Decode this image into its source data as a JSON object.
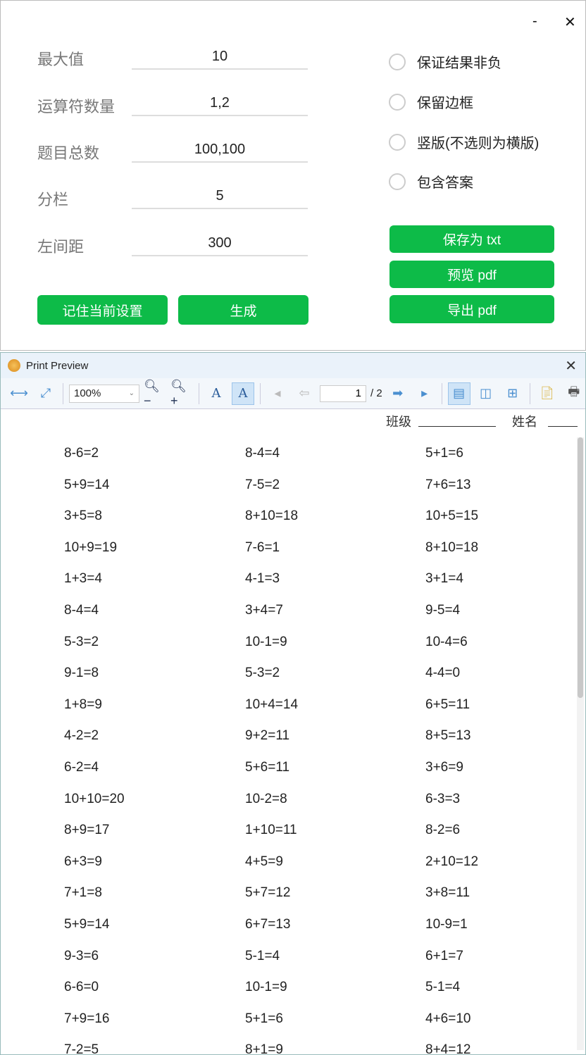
{
  "window": {
    "minimize": "-",
    "close": "✕"
  },
  "fields": [
    {
      "label": "最大值",
      "value": "10"
    },
    {
      "label": "运算符数量",
      "value": "1,2"
    },
    {
      "label": "题目总数",
      "value": "100,100"
    },
    {
      "label": "分栏",
      "value": "5"
    },
    {
      "label": "左间距",
      "value": "300"
    }
  ],
  "options": [
    {
      "label": "保证结果非负",
      "checked": false
    },
    {
      "label": "保留边框",
      "checked": false
    },
    {
      "label": "竖版(不选则为横版)",
      "checked": false
    },
    {
      "label": "包含答案",
      "checked": false
    }
  ],
  "buttons": {
    "remember": "记住当前设置",
    "generate": "生成",
    "save_txt": "保存为 txt",
    "preview_pdf": "预览 pdf",
    "export_pdf": "导出 pdf"
  },
  "accent": "#0dbb48",
  "preview": {
    "title": "Print Preview",
    "close": "✕",
    "zoom": "100%",
    "page": "1",
    "total": "/ 2",
    "header": {
      "class_label": "班级",
      "name_label": "姓名"
    },
    "rows": [
      [
        "8-6=2",
        "8-4=4",
        "5+1=6"
      ],
      [
        "5+9=14",
        "7-5=2",
        "7+6=13"
      ],
      [
        "3+5=8",
        "8+10=18",
        "10+5=15"
      ],
      [
        "10+9=19",
        "7-6=1",
        "8+10=18"
      ],
      [
        "1+3=4",
        "4-1=3",
        "3+1=4"
      ],
      [
        "8-4=4",
        "3+4=7",
        "9-5=4"
      ],
      [
        "5-3=2",
        "10-1=9",
        "10-4=6"
      ],
      [
        "9-1=8",
        "5-3=2",
        "4-4=0"
      ],
      [
        "1+8=9",
        "10+4=14",
        "6+5=11"
      ],
      [
        "4-2=2",
        "9+2=11",
        "8+5=13"
      ],
      [
        "6-2=4",
        "5+6=11",
        "3+6=9"
      ],
      [
        "10+10=20",
        "10-2=8",
        "6-3=3"
      ],
      [
        "8+9=17",
        "1+10=11",
        "8-2=6"
      ],
      [
        "6+3=9",
        "4+5=9",
        "2+10=12"
      ],
      [
        "7+1=8",
        "5+7=12",
        "3+8=11"
      ],
      [
        "5+9=14",
        "6+7=13",
        "10-9=1"
      ],
      [
        "9-3=6",
        "5-1=4",
        "6+1=7"
      ],
      [
        "6-6=0",
        "10-1=9",
        "5-1=4"
      ],
      [
        "7+9=16",
        "5+1=6",
        "4+6=10"
      ],
      [
        "7-2=5",
        "8+1=9",
        "8+4=12"
      ]
    ]
  }
}
